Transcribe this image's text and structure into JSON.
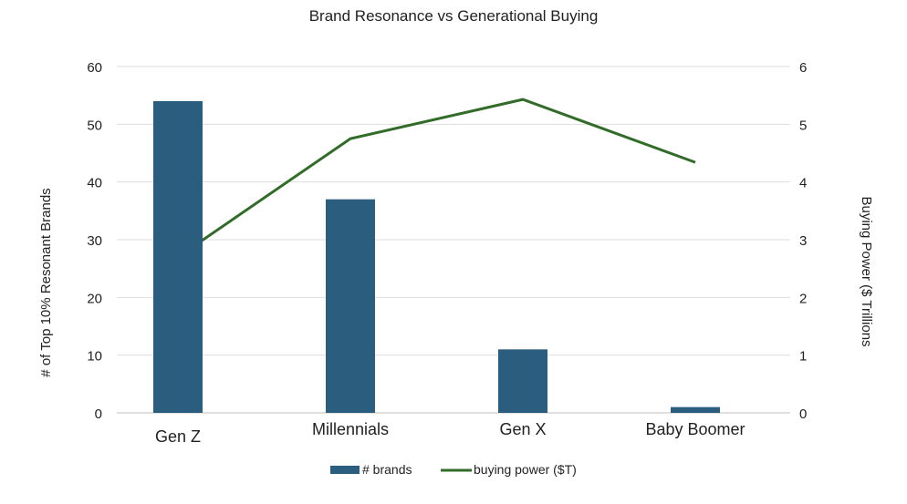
{
  "chart_data": {
    "type": "bar+line",
    "title": "Brand Resonance vs Generational Buying",
    "categories": [
      "Gen Z",
      "Millennials",
      "Gen X",
      "Baby Boomer"
    ],
    "series": [
      {
        "name": "# brands",
        "type": "bar",
        "axis": "left",
        "color": "#2b5d7e",
        "values": [
          54,
          37,
          11,
          1
        ]
      },
      {
        "name": "buying power ($T)",
        "type": "line",
        "axis": "right",
        "color": "#316c28",
        "values": [
          2.7,
          4.75,
          5.43,
          4.34
        ]
      }
    ],
    "ylabel": "# of Top 10% Resonant Brands",
    "y2label": "Buying Power ($ Trillions",
    "ylim": [
      0,
      60
    ],
    "y2lim": [
      0,
      6
    ],
    "yticks": [
      "0",
      "10",
      "20",
      "30",
      "40",
      "50",
      "60"
    ],
    "y2ticks": [
      "0",
      "1",
      "2",
      "3",
      "4",
      "5",
      "6"
    ],
    "grid": true,
    "legend": "bottom"
  }
}
